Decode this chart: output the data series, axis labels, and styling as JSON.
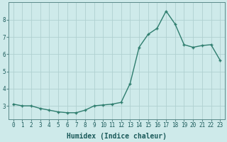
{
  "x": [
    0,
    1,
    2,
    3,
    4,
    5,
    6,
    7,
    8,
    9,
    10,
    11,
    12,
    13,
    14,
    15,
    16,
    17,
    18,
    19,
    20,
    21,
    22,
    23
  ],
  "y": [
    3.1,
    3.0,
    3.0,
    2.85,
    2.75,
    2.65,
    2.6,
    2.6,
    2.75,
    3.0,
    3.05,
    3.1,
    3.2,
    4.3,
    6.4,
    7.15,
    7.5,
    8.5,
    7.75,
    6.55,
    6.4,
    6.5,
    6.55,
    5.65
  ],
  "line_color": "#2e7d6e",
  "marker": "+",
  "marker_size": 3.5,
  "line_width": 1.0,
  "bg_color": "#ceeaea",
  "grid_color": "#b0d0d0",
  "xlabel": "Humidex (Indice chaleur)",
  "ylim": [
    2.2,
    9.0
  ],
  "xlim": [
    -0.5,
    23.5
  ],
  "yticks": [
    3,
    4,
    5,
    6,
    7,
    8
  ],
  "xticks": [
    0,
    1,
    2,
    3,
    4,
    5,
    6,
    7,
    8,
    9,
    10,
    11,
    12,
    13,
    14,
    15,
    16,
    17,
    18,
    19,
    20,
    21,
    22,
    23
  ],
  "tick_label_fontsize": 5.5,
  "xlabel_fontsize": 7.0
}
